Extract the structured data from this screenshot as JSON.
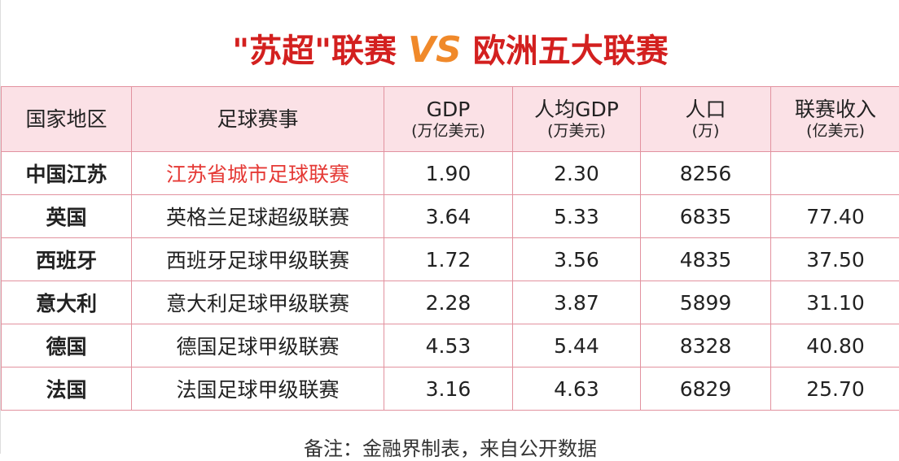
{
  "title": {
    "left": "\"苏超\"联赛",
    "vs": "VS",
    "right": "欧洲五大联赛"
  },
  "table": {
    "header": [
      {
        "main": "国家地区"
      },
      {
        "main": "足球赛事"
      },
      {
        "main": "GDP",
        "unit": "(万亿美元)"
      },
      {
        "main": "人均GDP",
        "unit": "(万美元)"
      },
      {
        "main": "人口",
        "unit": "(万)"
      },
      {
        "main": "联赛收入",
        "unit": "(亿美元)"
      }
    ],
    "rows": [
      [
        "中国江苏",
        "江苏省城市足球联赛",
        "1.90",
        "2.30",
        "8256",
        null
      ],
      [
        "英国",
        "英格兰足球超级联赛",
        "3.64",
        "5.33",
        "6835",
        "77.40"
      ],
      [
        "西班牙",
        "西班牙足球甲级联赛",
        "1.72",
        "3.56",
        "4835",
        "37.50"
      ],
      [
        "意大利",
        "意大利足球甲级联赛",
        "2.28",
        "3.87",
        "5899",
        "31.10"
      ],
      [
        "德国",
        "德国足球甲级联赛",
        "4.53",
        "5.44",
        "8328",
        "40.80"
      ],
      [
        "法国",
        "法国足球甲级联赛",
        "3.16",
        "4.63",
        "6829",
        "25.70"
      ]
    ]
  },
  "footer": "备注：金融界制表，来自公开数据"
}
